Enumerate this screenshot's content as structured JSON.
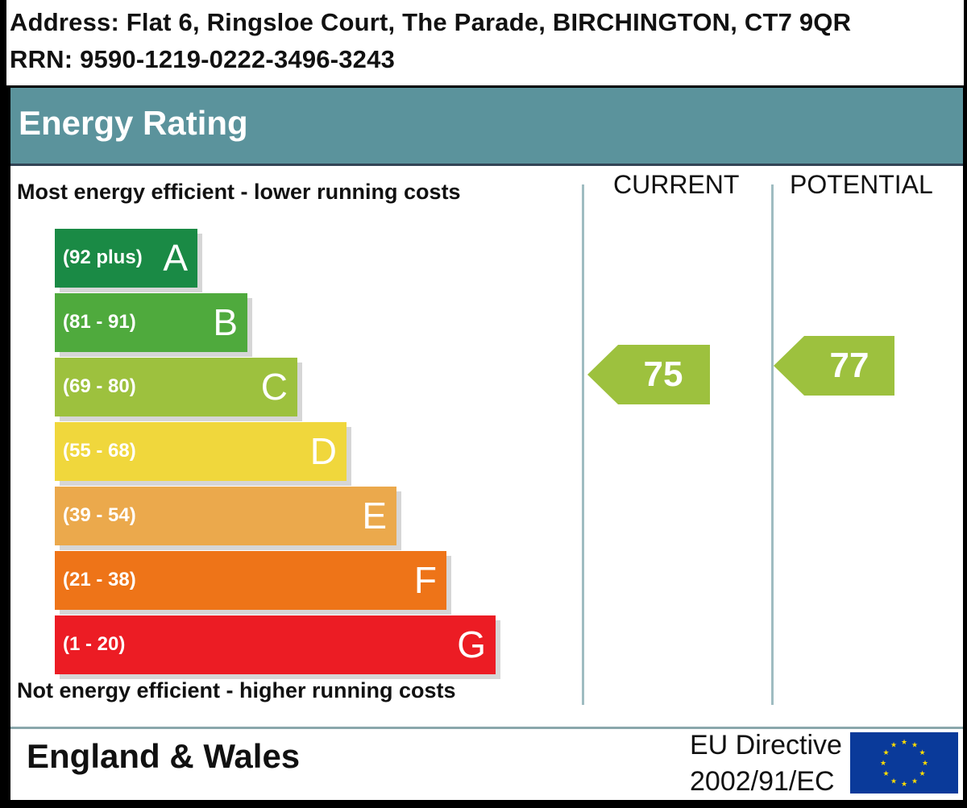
{
  "header": {
    "address": "Address: Flat 6, Ringsloe Court, The Parade, BIRCHINGTON, CT7 9QR",
    "rrn": "RRN: 9590-1219-0222-3496-3243"
  },
  "title": "Energy Rating",
  "top_caption": "Most energy efficient - lower running costs",
  "bottom_caption": "Not energy efficient - higher running costs",
  "columns": {
    "current": "CURRENT",
    "potential": "POTENTIAL"
  },
  "footer": {
    "country": "England & Wales",
    "directive_line1": "EU Directive",
    "directive_line2": "2002/91/EC"
  },
  "colors": {
    "title_bar": "#5b939c",
    "A": "#1a8a45",
    "B": "#4faa3d",
    "C": "#9dc13e",
    "D": "#f0d73c",
    "E": "#eba94c",
    "F": "#ee7418",
    "G": "#ec1c24",
    "eu_flag": "#0a3a9a",
    "eu_stars": "#ffdd00"
  },
  "chart_data": {
    "type": "bar",
    "bands": [
      {
        "letter": "A",
        "range": "(92 plus)",
        "color": "#1a8a45"
      },
      {
        "letter": "B",
        "range": "(81 - 91)",
        "color": "#4faa3d"
      },
      {
        "letter": "C",
        "range": "(69 - 80)",
        "color": "#9dc13e"
      },
      {
        "letter": "D",
        "range": "(55 - 68)",
        "color": "#f0d73c"
      },
      {
        "letter": "E",
        "range": "(39 - 54)",
        "color": "#eba94c"
      },
      {
        "letter": "F",
        "range": "(21 - 38)",
        "color": "#ee7418"
      },
      {
        "letter": "G",
        "range": "(1 - 20)",
        "color": "#ec1c24"
      }
    ],
    "current": {
      "value": "75",
      "band": "C",
      "color": "#9dc13e"
    },
    "potential": {
      "value": "77",
      "band": "C",
      "color": "#9dc13e"
    }
  }
}
